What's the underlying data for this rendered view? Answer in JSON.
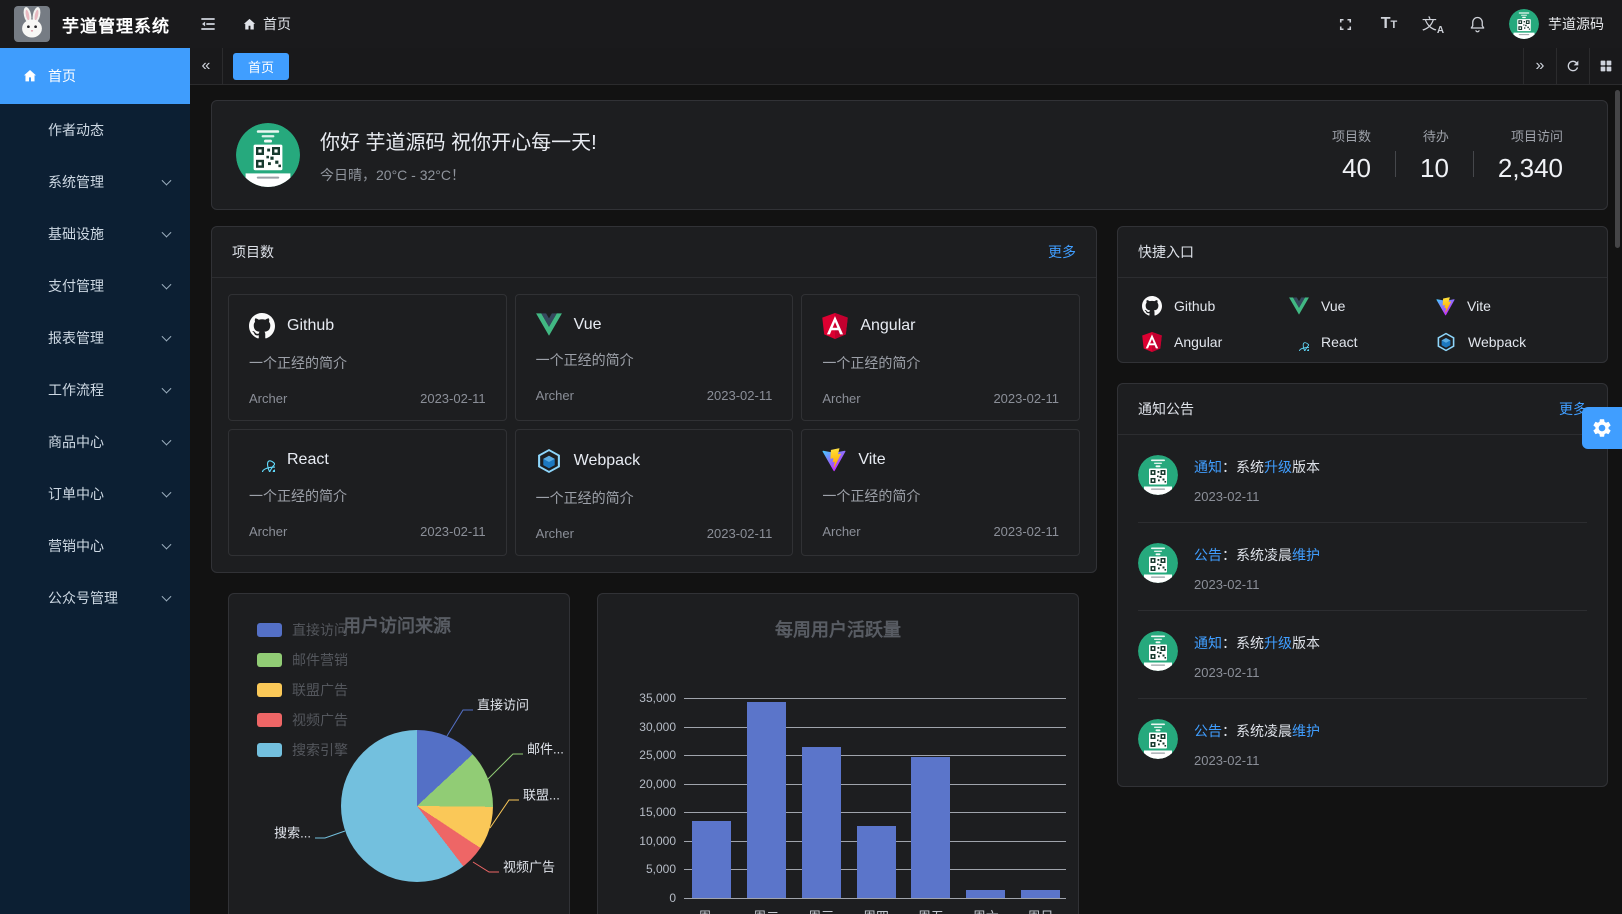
{
  "app": {
    "title": "芋道管理系统",
    "username": "芋道源码",
    "accent_color": "#409eff"
  },
  "topbar": {
    "breadcrumb_home": "首页",
    "font_size_icon_label": "Tt",
    "lang_icon_label": "文A"
  },
  "sidebar": {
    "items": [
      {
        "label": "首页",
        "active": true,
        "has_children": false
      },
      {
        "label": "作者动态",
        "active": false,
        "has_children": false
      },
      {
        "label": "系统管理",
        "active": false,
        "has_children": true
      },
      {
        "label": "基础设施",
        "active": false,
        "has_children": true
      },
      {
        "label": "支付管理",
        "active": false,
        "has_children": true
      },
      {
        "label": "报表管理",
        "active": false,
        "has_children": true
      },
      {
        "label": "工作流程",
        "active": false,
        "has_children": true
      },
      {
        "label": "商品中心",
        "active": false,
        "has_children": true
      },
      {
        "label": "订单中心",
        "active": false,
        "has_children": true
      },
      {
        "label": "营销中心",
        "active": false,
        "has_children": true
      },
      {
        "label": "公众号管理",
        "active": false,
        "has_children": true
      }
    ]
  },
  "tabs": {
    "active_tab": "首页"
  },
  "greeting": {
    "title": "你好 芋道源码 祝你开心每一天!",
    "subtitle": "今日晴，20°C - 32°C！",
    "stats": [
      {
        "label": "项目数",
        "value": "40"
      },
      {
        "label": "待办",
        "value": "10"
      },
      {
        "label": "项目访问",
        "value": "2,340"
      }
    ]
  },
  "projects": {
    "title": "项目数",
    "more_label": "更多",
    "items": [
      {
        "name": "Github",
        "icon": "github-icon",
        "desc": "一个正经的简介",
        "author": "Archer",
        "date": "2023-02-11"
      },
      {
        "name": "Vue",
        "icon": "vue-icon",
        "desc": "一个正经的简介",
        "author": "Archer",
        "date": "2023-02-11"
      },
      {
        "name": "Angular",
        "icon": "angular-icon",
        "desc": "一个正经的简介",
        "author": "Archer",
        "date": "2023-02-11"
      },
      {
        "name": "React",
        "icon": "react-icon",
        "desc": "一个正经的简介",
        "author": "Archer",
        "date": "2023-02-11"
      },
      {
        "name": "Webpack",
        "icon": "webpack-icon",
        "desc": "一个正经的简介",
        "author": "Archer",
        "date": "2023-02-11"
      },
      {
        "name": "Vite",
        "icon": "vite-icon",
        "desc": "一个正经的简介",
        "author": "Archer",
        "date": "2023-02-11"
      }
    ]
  },
  "shortcuts": {
    "title": "快捷入口",
    "items": [
      {
        "label": "Github",
        "icon": "github-icon"
      },
      {
        "label": "Vue",
        "icon": "vue-icon"
      },
      {
        "label": "Vite",
        "icon": "vite-icon"
      },
      {
        "label": "Angular",
        "icon": "angular-icon"
      },
      {
        "label": "React",
        "icon": "react-icon"
      },
      {
        "label": "Webpack",
        "icon": "webpack-icon"
      }
    ]
  },
  "notices": {
    "title": "通知公告",
    "more_label": "更多",
    "items": [
      {
        "date": "2023-02-11",
        "segments": [
          {
            "text": "通知",
            "hl": true
          },
          {
            "text": "：系统",
            "hl": false
          },
          {
            "text": "升级",
            "hl": true
          },
          {
            "text": "版本",
            "hl": false
          }
        ]
      },
      {
        "date": "2023-02-11",
        "segments": [
          {
            "text": "公告",
            "hl": true
          },
          {
            "text": "：系统凌晨",
            "hl": false
          },
          {
            "text": "维护",
            "hl": true
          },
          {
            "text": "",
            "hl": false
          }
        ]
      },
      {
        "date": "2023-02-11",
        "segments": [
          {
            "text": "通知",
            "hl": true
          },
          {
            "text": "：系统",
            "hl": false
          },
          {
            "text": "升级",
            "hl": true
          },
          {
            "text": "版本",
            "hl": false
          }
        ]
      },
      {
        "date": "2023-02-11",
        "segments": [
          {
            "text": "公告",
            "hl": true
          },
          {
            "text": "：系统凌晨",
            "hl": false
          },
          {
            "text": "维护",
            "hl": true
          },
          {
            "text": "",
            "hl": false
          }
        ]
      }
    ]
  },
  "chart_data": [
    {
      "type": "pie",
      "title": "用户访问来源",
      "legend_position": "left",
      "series": [
        {
          "name": "用户访问来源",
          "data": [
            {
              "name": "直接访问",
              "value": 335,
              "color": "#5470c6"
            },
            {
              "name": "邮件营销",
              "value": 310,
              "color": "#91cc75"
            },
            {
              "name": "联盟广告",
              "value": 234,
              "color": "#fac858"
            },
            {
              "name": "视频广告",
              "value": 135,
              "color": "#ee6666"
            },
            {
              "name": "搜索引擎",
              "value": 1548,
              "color": "#73c0de"
            }
          ]
        }
      ],
      "callout_labels": [
        "直接访问",
        "邮件...",
        "联盟...",
        "视频广告",
        "搜索..."
      ]
    },
    {
      "type": "bar",
      "title": "每周用户活跃量",
      "categories": [
        "周一",
        "周二",
        "周三",
        "周四",
        "周五",
        "周六",
        "周日"
      ],
      "values": [
        13400,
        34300,
        26400,
        12600,
        24700,
        1400,
        1400
      ],
      "ylim": [
        0,
        35000
      ],
      "ytick_step": 5000,
      "bar_color": "#5b75ca",
      "grid": true
    }
  ]
}
